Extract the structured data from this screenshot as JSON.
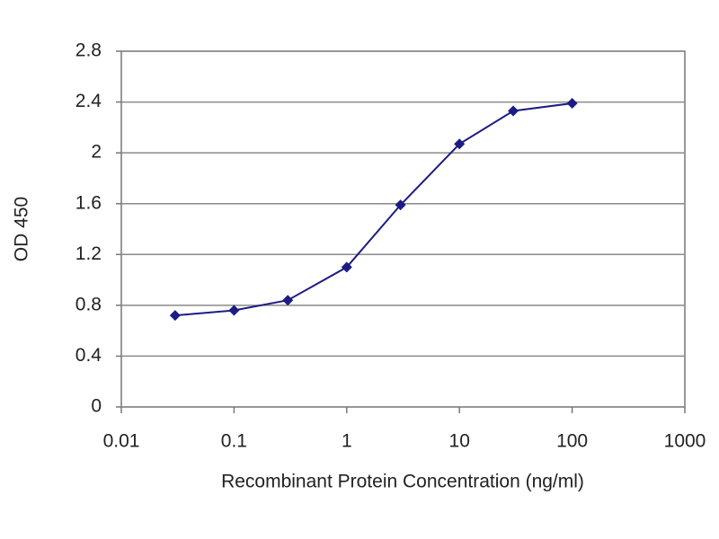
{
  "chart_data": {
    "type": "line",
    "x_label": "Recombinant Protein Concentration (ng/ml)",
    "y_label": "OD 450",
    "x": [
      0.03,
      0.1,
      0.3,
      1,
      3,
      10,
      30,
      100
    ],
    "values": [
      0.72,
      0.76,
      0.84,
      1.1,
      1.59,
      2.07,
      2.33,
      2.39
    ],
    "color": "#1c1c84",
    "xscale": "log",
    "xlim": [
      0.01,
      1000
    ],
    "xticks": [
      0.01,
      0.1,
      1,
      10,
      100,
      1000
    ],
    "ylim": [
      0,
      2.8
    ],
    "yticks": [
      0,
      0.4,
      0.8,
      1.2,
      1.6,
      2,
      2.4,
      2.8
    ],
    "grid": true
  }
}
